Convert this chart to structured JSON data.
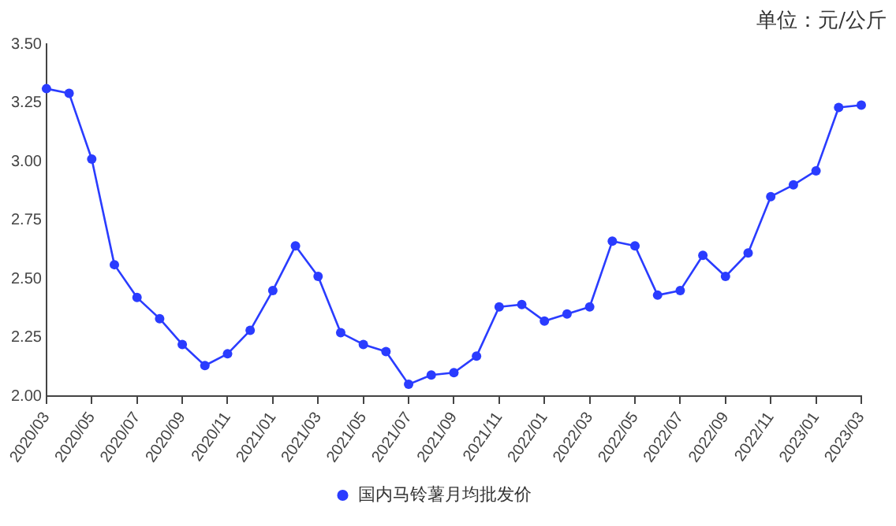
{
  "chart_data": {
    "type": "line",
    "annotations": [
      "单位：元/公斤"
    ],
    "categories": [
      "2020/03",
      null,
      "2020/05",
      null,
      "2020/07",
      null,
      "2020/09",
      null,
      "2020/11",
      null,
      "2021/01",
      null,
      "2021/03",
      null,
      "2021/05",
      null,
      "2021/07",
      null,
      "2021/09",
      null,
      "2021/11",
      null,
      "2022/01",
      null,
      "2022/03",
      null,
      "2022/05",
      null,
      "2022/07",
      null,
      "2022/09",
      null,
      "2022/11",
      null,
      "2023/01",
      null,
      "2023/03"
    ],
    "series": [
      {
        "name": "国内马铃薯月均批发价",
        "color": "#2a3cff",
        "values": [
          3.31,
          3.29,
          3.01,
          2.56,
          2.42,
          2.33,
          2.22,
          2.13,
          2.18,
          2.28,
          2.45,
          2.64,
          2.51,
          2.27,
          2.22,
          2.19,
          2.05,
          2.09,
          2.1,
          2.17,
          2.38,
          2.39,
          2.32,
          2.35,
          2.38,
          2.66,
          2.64,
          2.43,
          2.45,
          2.6,
          2.51,
          2.61,
          2.85,
          2.9,
          2.96,
          3.23,
          3.24
        ]
      }
    ],
    "ylim": [
      2.0,
      3.5
    ],
    "yticks": [
      {
        "value": 2,
        "label": "2.00"
      },
      {
        "value": 2.25,
        "label": "2.25"
      },
      {
        "value": 2.5,
        "label": "2.50"
      },
      {
        "value": 2.75,
        "label": "2.75"
      },
      {
        "value": 3,
        "label": "3.00"
      },
      {
        "value": 3.25,
        "label": "3.25"
      },
      {
        "value": 3.5,
        "label": "3.50"
      }
    ],
    "grid": false,
    "legend": "bottom",
    "marker": "circle",
    "line_style": "solid"
  }
}
